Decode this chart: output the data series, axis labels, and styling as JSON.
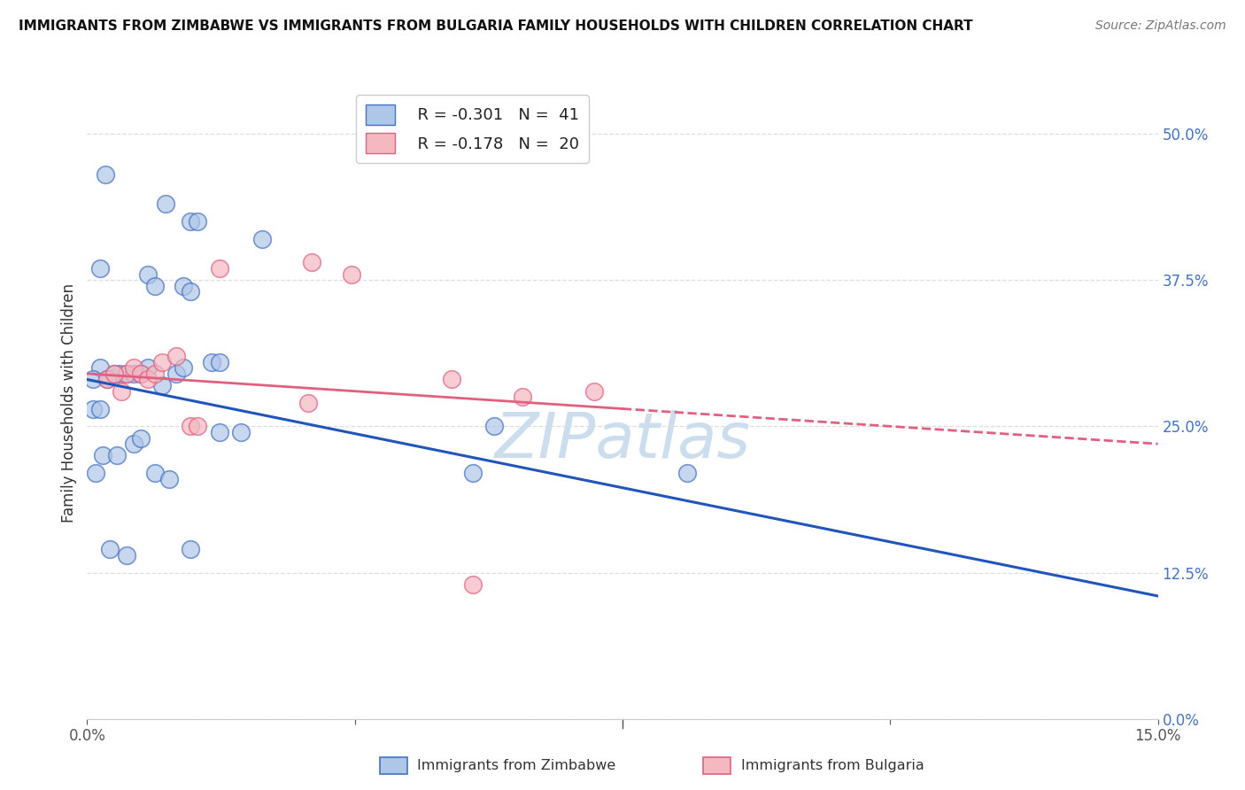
{
  "title": "IMMIGRANTS FROM ZIMBABWE VS IMMIGRANTS FROM BULGARIA FAMILY HOUSEHOLDS WITH CHILDREN CORRELATION CHART",
  "source": "Source: ZipAtlas.com",
  "ylabel": "Family Households with Children",
  "ytick_values": [
    0.0,
    12.5,
    25.0,
    37.5,
    50.0
  ],
  "xlim": [
    0.0,
    15.0
  ],
  "ylim": [
    0.0,
    54.0
  ],
  "legend_r1": "R = -0.301",
  "legend_n1": "N =  41",
  "legend_r2": "R = -0.178",
  "legend_n2": "N =  20",
  "blue_fill": "#aec6e8",
  "blue_edge": "#4472c4",
  "pink_fill": "#f4b8c1",
  "pink_edge": "#e06080",
  "trendline_blue": "#2255bb",
  "trendline_pink": "#e06080",
  "zimbabwe_x": [
    0.25,
    1.1,
    1.45,
    1.55,
    2.45,
    0.18,
    0.85,
    0.95,
    1.35,
    1.45,
    0.18,
    0.45,
    0.55,
    0.65,
    0.75,
    0.85,
    1.05,
    1.25,
    1.35,
    0.08,
    0.28,
    0.38,
    1.75,
    1.85,
    0.08,
    0.18,
    0.65,
    0.75,
    1.85,
    5.4,
    5.7,
    8.4,
    0.12,
    0.22,
    0.42,
    0.95,
    1.15,
    2.15,
    0.32,
    0.55,
    1.45
  ],
  "zimbabwe_y": [
    46.5,
    44.0,
    42.5,
    42.5,
    41.0,
    38.5,
    38.0,
    37.0,
    37.0,
    36.5,
    30.0,
    29.5,
    29.5,
    29.5,
    29.5,
    30.0,
    28.5,
    29.5,
    30.0,
    29.0,
    29.0,
    29.5,
    30.5,
    30.5,
    26.5,
    26.5,
    23.5,
    24.0,
    24.5,
    21.0,
    25.0,
    21.0,
    21.0,
    22.5,
    22.5,
    21.0,
    20.5,
    24.5,
    14.5,
    14.0,
    14.5
  ],
  "bulgaria_x": [
    0.28,
    0.55,
    0.65,
    0.75,
    0.85,
    0.95,
    1.05,
    1.25,
    1.85,
    3.15,
    0.38,
    0.48,
    1.45,
    1.55,
    5.1,
    7.1,
    5.4,
    3.7,
    6.1,
    3.1
  ],
  "bulgaria_y": [
    29.0,
    29.5,
    30.0,
    29.5,
    29.0,
    29.5,
    30.5,
    31.0,
    38.5,
    39.0,
    29.5,
    28.0,
    25.0,
    25.0,
    29.0,
    28.0,
    11.5,
    38.0,
    27.5,
    27.0
  ],
  "blue_trend_x0": 0.0,
  "blue_trend_y0": 29.0,
  "blue_trend_x1": 15.0,
  "blue_trend_y1": 10.5,
  "pink_solid_x0": 0.0,
  "pink_solid_y0": 29.5,
  "pink_solid_x1": 7.5,
  "pink_solid_y1": 26.5,
  "pink_dash_x0": 7.5,
  "pink_dash_y0": 26.5,
  "pink_dash_x1": 15.0,
  "pink_dash_y1": 23.5,
  "watermark": "ZIPatlas",
  "watermark_color": "#ccddee",
  "bg_color": "#ffffff",
  "grid_color": "#dddddd",
  "ytick_color": "#4472c4",
  "spine_color": "#cccccc"
}
